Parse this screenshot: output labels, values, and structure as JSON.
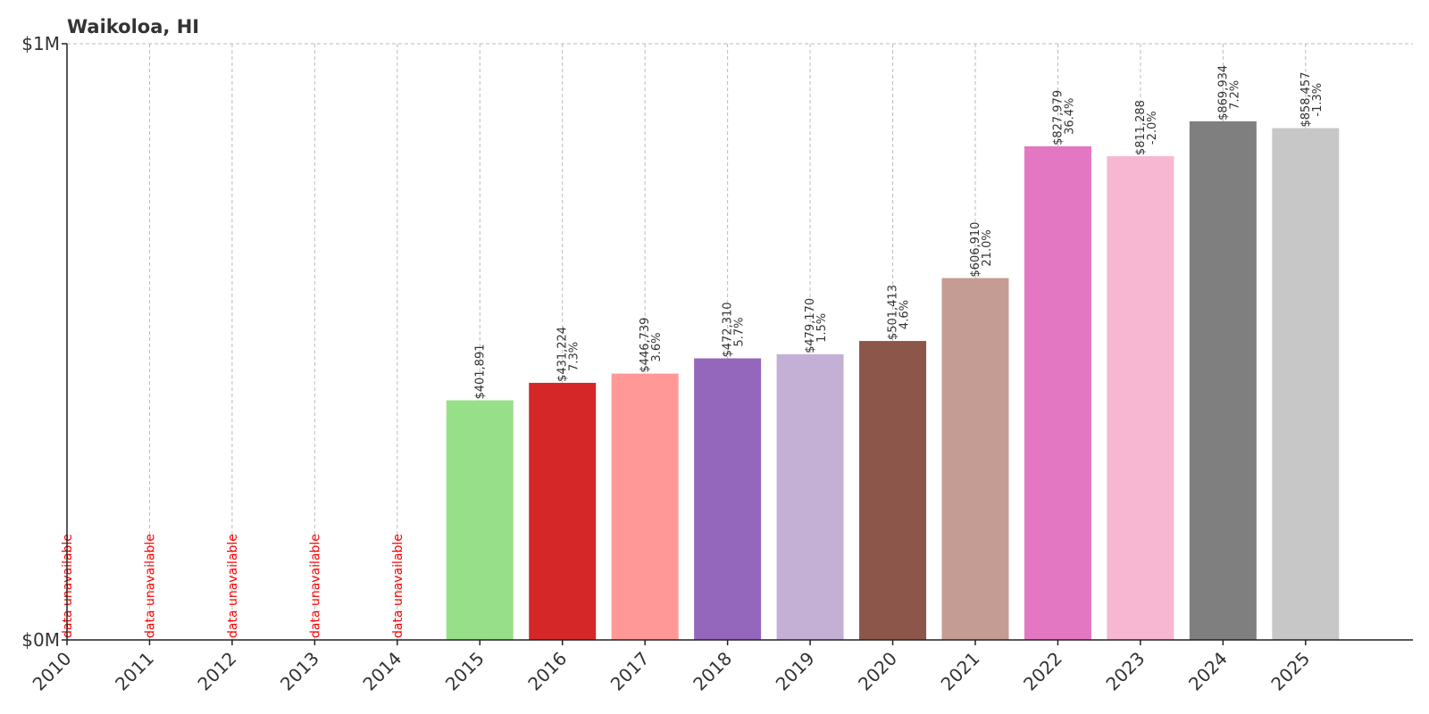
{
  "chart_data": {
    "type": "bar",
    "title": "Waikoloa, HI",
    "xlabel": "",
    "ylabel": "",
    "ylim": [
      0,
      1000000
    ],
    "yticks": [
      {
        "value": 0,
        "label": "$0M"
      },
      {
        "value": 1000000,
        "label": "$1M"
      }
    ],
    "grid": true,
    "categories": [
      "2010",
      "2011",
      "2012",
      "2013",
      "2014",
      "2015",
      "2016",
      "2017",
      "2018",
      "2019",
      "2020",
      "2021",
      "2022",
      "2023",
      "2024",
      "2025"
    ],
    "values": [
      null,
      null,
      null,
      null,
      null,
      401891,
      431224,
      446739,
      472310,
      479170,
      501413,
      606910,
      827979,
      811288,
      869934,
      858457
    ],
    "value_labels": [
      "",
      "",
      "",
      "",
      "",
      "$401,891",
      "$431,224",
      "$446,739",
      "$472,310",
      "$479,170",
      "$501,413",
      "$606,910",
      "$827,979",
      "$811,288",
      "$869,934",
      "$858,457"
    ],
    "change_labels": [
      "",
      "",
      "",
      "",
      "",
      "",
      "7.3%",
      "3.6%",
      "5.7%",
      "1.5%",
      "4.6%",
      "21.0%",
      "36.4%",
      "-2.0%",
      "7.2%",
      "-1.3%"
    ],
    "unavailable_label": "data unavailable",
    "colors": [
      "#1f77b4",
      "#aec7e8",
      "#ff7f0e",
      "#ffbb78",
      "#2ca02c",
      "#98df8a",
      "#d62728",
      "#ff9896",
      "#9467bd",
      "#c5b0d5",
      "#8c564b",
      "#c49c94",
      "#e377c2",
      "#f7b6d2",
      "#7f7f7f",
      "#c7c7c7"
    ]
  }
}
